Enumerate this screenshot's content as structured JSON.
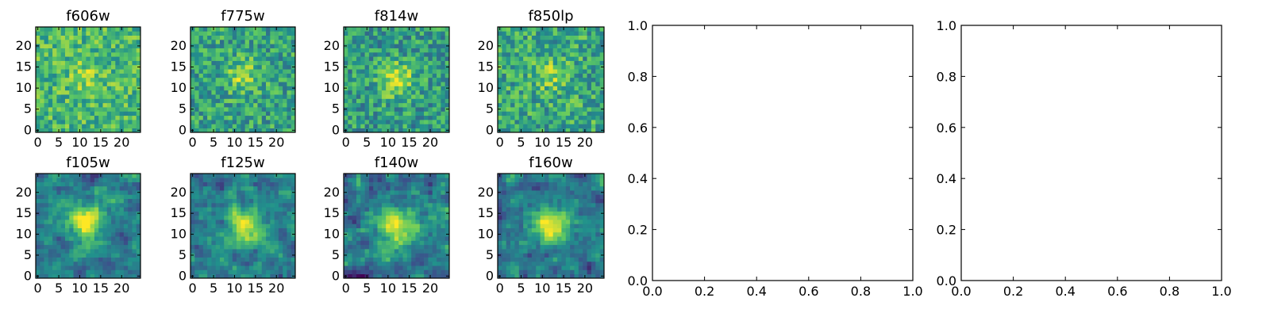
{
  "figure": {
    "title": "",
    "colormap": "viridis",
    "colormap_stops": [
      "#440154",
      "#3b528b",
      "#21918c",
      "#5ec962",
      "#fde725"
    ]
  },
  "chart_data": [
    {
      "type": "heatmap",
      "title": "f606w",
      "grid_size": [
        25,
        25
      ],
      "xlim": [
        0,
        24
      ],
      "ylim": [
        0,
        24
      ],
      "x_ticks": [
        "0",
        "5",
        "10",
        "15",
        "20"
      ],
      "y_ticks": [
        "0",
        "5",
        "10",
        "15",
        "20"
      ],
      "xlabel": "",
      "ylabel": "",
      "source_center": [
        12,
        13
      ],
      "source_strength": 0.15,
      "source_sigma": 3.0,
      "background_level": 0.66,
      "noise_level": 0.42,
      "noise_smoothing": 0,
      "seed": 11
    },
    {
      "type": "heatmap",
      "title": "f775w",
      "grid_size": [
        25,
        25
      ],
      "xlim": [
        0,
        24
      ],
      "ylim": [
        0,
        24
      ],
      "x_ticks": [
        "0",
        "5",
        "10",
        "15",
        "20"
      ],
      "y_ticks": [
        "0",
        "5",
        "10",
        "15",
        "20"
      ],
      "xlabel": "",
      "ylabel": "",
      "source_center": [
        12,
        13
      ],
      "source_strength": 0.28,
      "source_sigma": 2.6,
      "background_level": 0.58,
      "noise_level": 0.44,
      "noise_smoothing": 0,
      "seed": 23
    },
    {
      "type": "heatmap",
      "title": "f814w",
      "grid_size": [
        25,
        25
      ],
      "xlim": [
        0,
        24
      ],
      "ylim": [
        0,
        24
      ],
      "x_ticks": [
        "0",
        "5",
        "10",
        "15",
        "20"
      ],
      "y_ticks": [
        "0",
        "5",
        "10",
        "15",
        "20"
      ],
      "xlabel": "",
      "ylabel": "",
      "source_center": [
        12,
        12
      ],
      "source_strength": 0.38,
      "source_sigma": 2.8,
      "background_level": 0.55,
      "noise_level": 0.44,
      "noise_smoothing": 0,
      "seed": 37
    },
    {
      "type": "heatmap",
      "title": "f850lp",
      "grid_size": [
        25,
        25
      ],
      "xlim": [
        0,
        24
      ],
      "ylim": [
        0,
        24
      ],
      "x_ticks": [
        "0",
        "5",
        "10",
        "15",
        "20"
      ],
      "y_ticks": [
        "0",
        "5",
        "10",
        "15",
        "20"
      ],
      "xlabel": "",
      "ylabel": "",
      "source_center": [
        12,
        13
      ],
      "source_strength": 0.2,
      "source_sigma": 2.6,
      "background_level": 0.6,
      "noise_level": 0.46,
      "noise_smoothing": 0,
      "seed": 53
    },
    {
      "type": "heatmap",
      "title": "f105w",
      "grid_size": [
        25,
        25
      ],
      "xlim": [
        0,
        24
      ],
      "ylim": [
        0,
        24
      ],
      "x_ticks": [
        "0",
        "5",
        "10",
        "15",
        "20"
      ],
      "y_ticks": [
        "0",
        "5",
        "10",
        "15",
        "20"
      ],
      "xlabel": "",
      "ylabel": "",
      "source_center": [
        12,
        13
      ],
      "source_strength": 0.55,
      "source_sigma": 3.0,
      "background_level": 0.42,
      "noise_level": 0.38,
      "noise_smoothing": 1,
      "seed": 71
    },
    {
      "type": "heatmap",
      "title": "f125w",
      "grid_size": [
        25,
        25
      ],
      "xlim": [
        0,
        24
      ],
      "ylim": [
        0,
        24
      ],
      "x_ticks": [
        "0",
        "5",
        "10",
        "15",
        "20"
      ],
      "y_ticks": [
        "0",
        "5",
        "10",
        "15",
        "20"
      ],
      "xlabel": "",
      "ylabel": "",
      "source_center": [
        13,
        12
      ],
      "source_strength": 0.55,
      "source_sigma": 3.2,
      "background_level": 0.42,
      "noise_level": 0.4,
      "noise_smoothing": 1,
      "seed": 89
    },
    {
      "type": "heatmap",
      "title": "f140w",
      "grid_size": [
        25,
        25
      ],
      "xlim": [
        0,
        24
      ],
      "ylim": [
        0,
        24
      ],
      "x_ticks": [
        "0",
        "5",
        "10",
        "15",
        "20"
      ],
      "y_ticks": [
        "0",
        "5",
        "10",
        "15",
        "20"
      ],
      "xlabel": "",
      "ylabel": "",
      "source_center": [
        12,
        12
      ],
      "source_strength": 0.55,
      "source_sigma": 3.0,
      "background_level": 0.4,
      "noise_level": 0.42,
      "noise_smoothing": 1,
      "seed": 97
    },
    {
      "type": "heatmap",
      "title": "f160w",
      "grid_size": [
        25,
        25
      ],
      "xlim": [
        0,
        24
      ],
      "ylim": [
        0,
        24
      ],
      "x_ticks": [
        "0",
        "5",
        "10",
        "15",
        "20"
      ],
      "y_ticks": [
        "0",
        "5",
        "10",
        "15",
        "20"
      ],
      "xlabel": "",
      "ylabel": "",
      "source_center": [
        12,
        12
      ],
      "source_strength": 0.58,
      "source_sigma": 3.0,
      "background_level": 0.4,
      "noise_level": 0.38,
      "noise_smoothing": 1,
      "seed": 113
    },
    {
      "type": "line",
      "title": "",
      "series": [],
      "xlim": [
        0.0,
        1.0
      ],
      "ylim": [
        0.0,
        1.0
      ],
      "x_ticks": [
        "0.0",
        "0.2",
        "0.4",
        "0.6",
        "0.8",
        "1.0"
      ],
      "y_ticks": [
        "0.0",
        "0.2",
        "0.4",
        "0.6",
        "0.8",
        "1.0"
      ],
      "xlabel": "",
      "ylabel": "",
      "grid": false
    },
    {
      "type": "line",
      "title": "",
      "series": [],
      "xlim": [
        0.0,
        1.0
      ],
      "ylim": [
        0.0,
        1.0
      ],
      "x_ticks": [
        "0.0",
        "0.2",
        "0.4",
        "0.6",
        "0.8",
        "1.0"
      ],
      "y_ticks": [
        "0.0",
        "0.2",
        "0.4",
        "0.6",
        "0.8",
        "1.0"
      ],
      "xlabel": "",
      "ylabel": "",
      "grid": false
    }
  ]
}
